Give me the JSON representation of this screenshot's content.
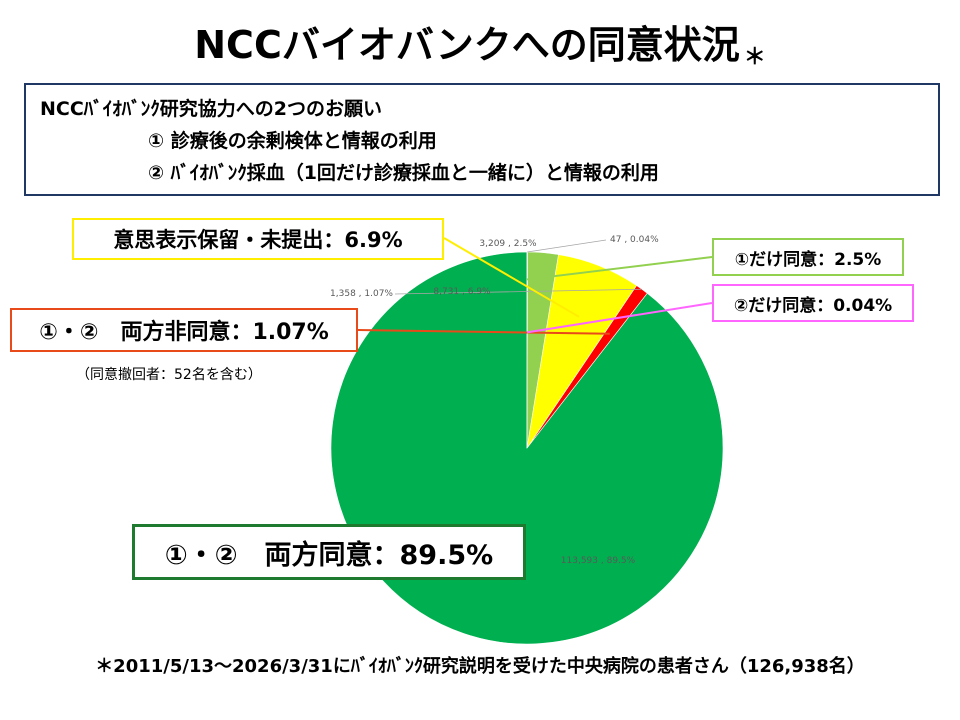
{
  "title": "NCCバイオバンクへの同意状況",
  "title_marker": "＊",
  "request_box": {
    "heading": "NCCﾊﾞｲｵﾊﾞﾝｸ研究協力への2つのお願い",
    "item1": "① 診療後の余剰検体と情報の利用",
    "item2": "② ﾊﾞｲｵﾊﾞﾝｸ採血（1回だけ診療採血と一緒に）と情報の利用"
  },
  "callouts": {
    "both_agree": "①・②　両方同意：89.5%",
    "pending": "意思表示保留・未提出：6.9%",
    "both_disagree": "①・②　両方非同意：1.07%",
    "only1": "①だけ同意：2.5%",
    "only2": "②だけ同意：0.04%"
  },
  "withdraw_note": "（同意撤回者：52名を含む）",
  "footnote": "＊2011/5/13～2026/3/31にﾊﾞｲｵﾊﾞﾝｸ研究説明を受けた中央病院の患者さん（126,938名）",
  "colors": {
    "both_agree": "#00b050",
    "both_disagree": "#ff0000",
    "pending": "#ffff00",
    "only1": "#92d050",
    "only2": "#c0c0c0",
    "box_border": "#1f3864"
  },
  "chart_data": {
    "type": "pie",
    "slices": [
      {
        "key": "both_agree",
        "value": 113593,
        "percent": 89.5,
        "label": "113,593 , 89.5%"
      },
      {
        "key": "both_disagree",
        "value": 1358,
        "percent": 1.07,
        "label": "1,358 , 1.07%"
      },
      {
        "key": "pending",
        "value": 8731,
        "percent": 6.9,
        "label": "8,731 , 6.9%"
      },
      {
        "key": "only1",
        "value": 3209,
        "percent": 2.5,
        "label": "3,209 , 2.5%"
      },
      {
        "key": "only2",
        "value": 47,
        "percent": 0.04,
        "label": "47 , 0.04%"
      }
    ],
    "start_angle": "12 o'clock",
    "direction": "clockwise"
  }
}
